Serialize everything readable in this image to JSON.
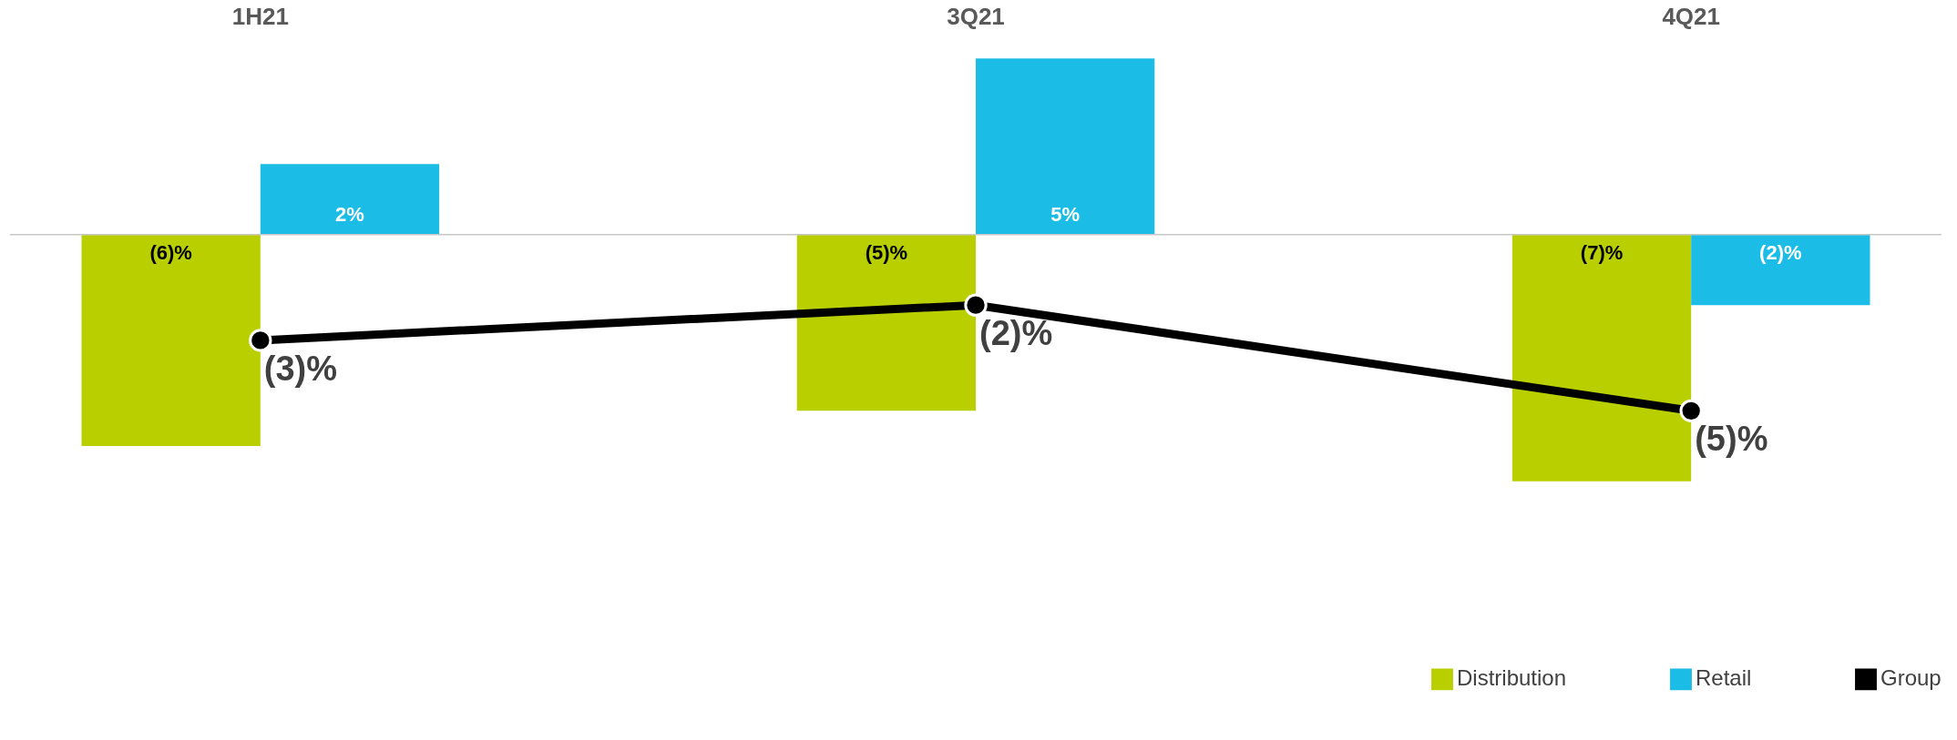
{
  "chart_data": {
    "type": "bar",
    "categories": [
      "1H21",
      "3Q21",
      "4Q21"
    ],
    "series": [
      {
        "name": "Distribution",
        "color": "#b9cf00",
        "values": [
          -6,
          -5,
          -7
        ],
        "value_labels": [
          "(6)%",
          "(5)%",
          "(7)%"
        ]
      },
      {
        "name": "Retail",
        "color": "#1bbce6",
        "values": [
          2,
          5,
          -2
        ],
        "value_labels": [
          "2%",
          "5%",
          "(2)%"
        ]
      },
      {
        "name": "Group",
        "type": "line",
        "color": "#000000",
        "marker": "circle",
        "values": [
          -3,
          -2,
          -5
        ],
        "value_labels": [
          "(3)%",
          "(2)%",
          "(5)%"
        ]
      }
    ],
    "legend": "bottom right"
  }
}
